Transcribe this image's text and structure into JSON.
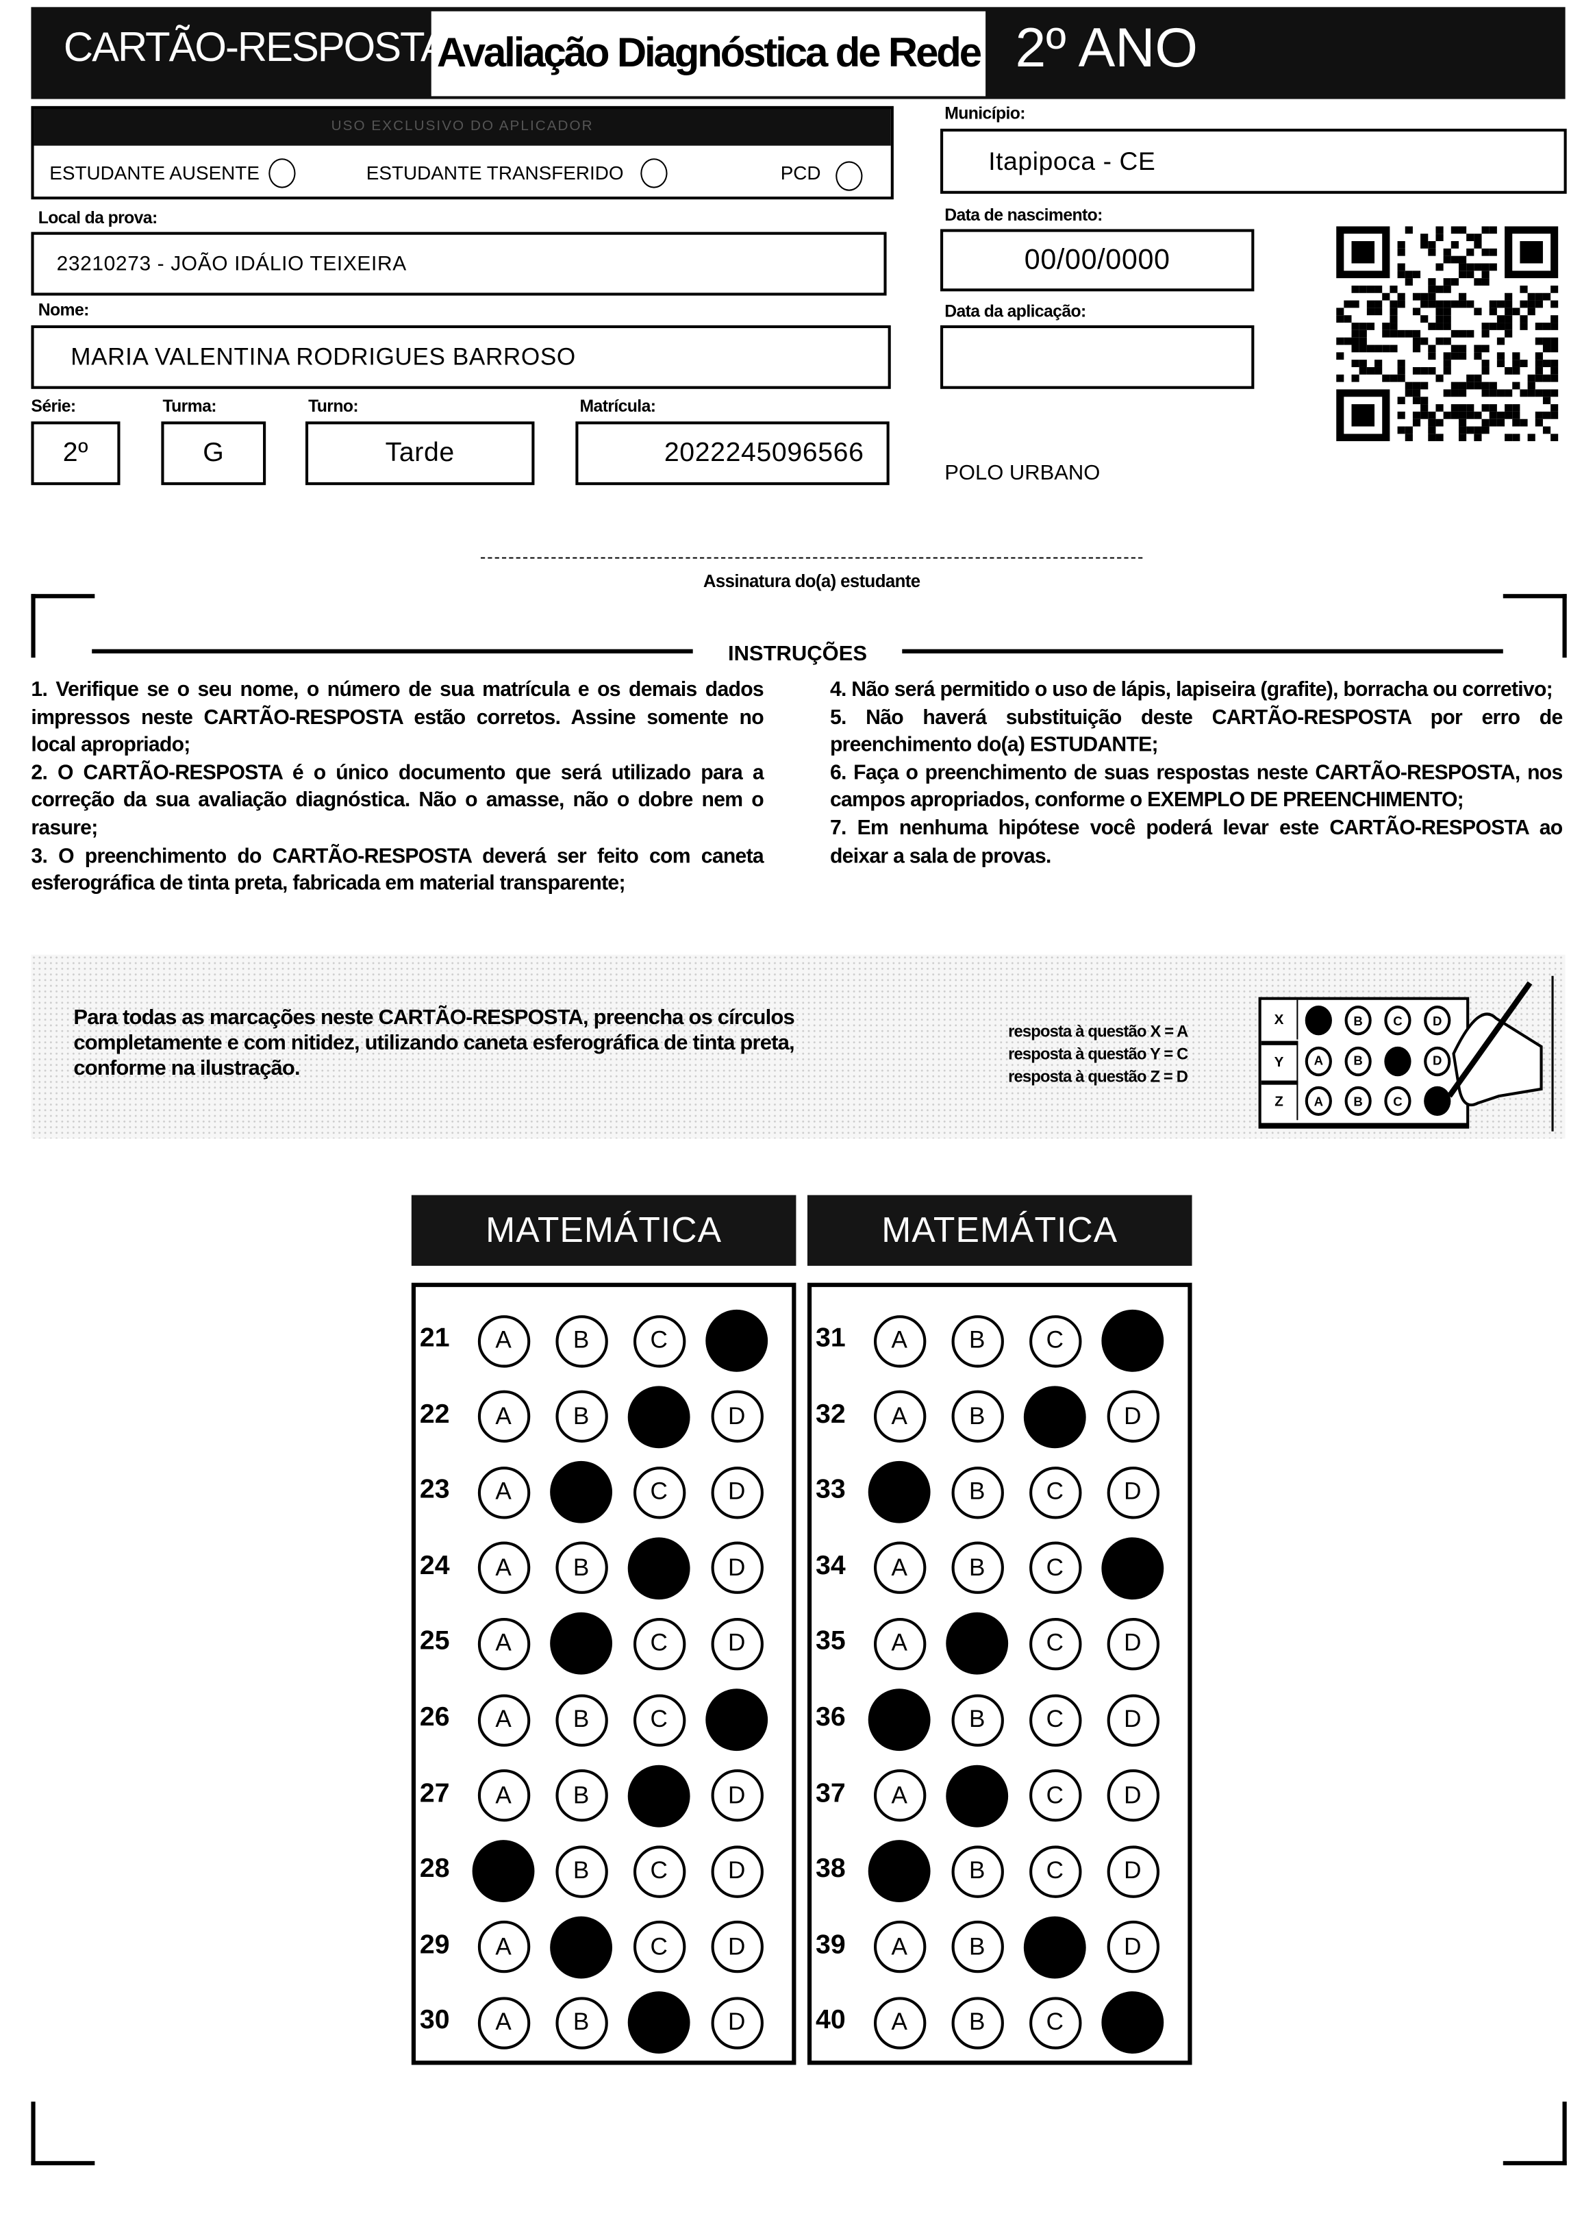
{
  "header": {
    "card_title": "CARTÃO-RESPOSTA",
    "exam_title": "Avaliação Diagnóstica de Rede",
    "grade": "2º ANO"
  },
  "applicator": {
    "title": "USO EXCLUSIVO DO APLICADOR",
    "options": [
      "ESTUDANTE AUSENTE",
      "ESTUDANTE TRANSFERIDO",
      "PCD"
    ]
  },
  "fields": {
    "municipio_label": "Município:",
    "municipio": "Itapipoca - CE",
    "local_label": "Local da prova:",
    "local": "23210273 - JOÃO IDÁLIO TEIXEIRA",
    "nascimento_label": "Data de nascimento:",
    "nascimento": "00/00/0000",
    "aplicacao_label": "Data da aplicação:",
    "aplicacao": "",
    "nome_label": "Nome:",
    "nome": "MARIA VALENTINA RODRIGUES BARROSO",
    "serie_label": "Série:",
    "serie": "2º",
    "turma_label": "Turma:",
    "turma": "G",
    "turno_label": "Turno:",
    "turno": "Tarde",
    "matricula_label": "Matrícula:",
    "matricula": "2022245096566",
    "polo": "POLO URBANO"
  },
  "signature_label": "Assinatura do(a) estudante",
  "instructions": {
    "title": "INSTRUÇÕES",
    "left": [
      "1. Verifique se o seu nome, o número de sua matrícula e os demais dados impressos neste CARTÃO-RESPOSTA estão corretos. Assine somente no local apropriado;",
      "2. O CARTÃO-RESPOSTA é o único documento que será utilizado para a correção da sua avaliação diagnóstica. Não o amasse, não o dobre nem o rasure;",
      "3. O preenchimento do CARTÃO-RESPOSTA deverá ser feito com caneta esferográfica de tinta preta, fabricada em material transparente;"
    ],
    "right": [
      "4. Não será permitido o uso de lápis, lapiseira (grafite), borracha ou corretivo;",
      "5. Não haverá substituição deste CARTÃO-RESPOSTA por erro de preenchimento do(a) ESTUDANTE;",
      "6. Faça o preenchimento de suas respostas neste CARTÃO-RESPOSTA, nos campos apropriados, conforme o EXEMPLO DE PREENCHIMENTO;",
      "7. Em nenhuma hipótese você poderá levar este CARTÃO-RESPOSTA ao deixar a sala de provas."
    ]
  },
  "example": {
    "text": "Para todas as marcações neste CARTÃO-RESPOSTA, preencha os círculos completamente e com nitidez, utilizando caneta esferográfica de tinta preta, conforme na ilustração.",
    "legend": [
      "resposta à questão X = A",
      "resposta à questão Y = C",
      "resposta à questão Z = D"
    ],
    "rows": [
      {
        "q": "X",
        "marked": "A"
      },
      {
        "q": "Y",
        "marked": "C"
      },
      {
        "q": "Z",
        "marked": "D"
      }
    ],
    "options": [
      "A",
      "B",
      "C",
      "D"
    ]
  },
  "sections": [
    {
      "title": "MATEMÁTICA",
      "questions": [
        {
          "n": "21",
          "marked": "D"
        },
        {
          "n": "22",
          "marked": "C"
        },
        {
          "n": "23",
          "marked": "B"
        },
        {
          "n": "24",
          "marked": "C"
        },
        {
          "n": "25",
          "marked": "B"
        },
        {
          "n": "26",
          "marked": "D"
        },
        {
          "n": "27",
          "marked": "C"
        },
        {
          "n": "28",
          "marked": "A"
        },
        {
          "n": "29",
          "marked": "B"
        },
        {
          "n": "30",
          "marked": "C"
        }
      ]
    },
    {
      "title": "MATEMÁTICA",
      "questions": [
        {
          "n": "31",
          "marked": "D"
        },
        {
          "n": "32",
          "marked": "C"
        },
        {
          "n": "33",
          "marked": "A"
        },
        {
          "n": "34",
          "marked": "D"
        },
        {
          "n": "35",
          "marked": "B"
        },
        {
          "n": "36",
          "marked": "A"
        },
        {
          "n": "37",
          "marked": "B"
        },
        {
          "n": "38",
          "marked": "A"
        },
        {
          "n": "39",
          "marked": "C"
        },
        {
          "n": "40",
          "marked": "D"
        }
      ]
    }
  ]
}
